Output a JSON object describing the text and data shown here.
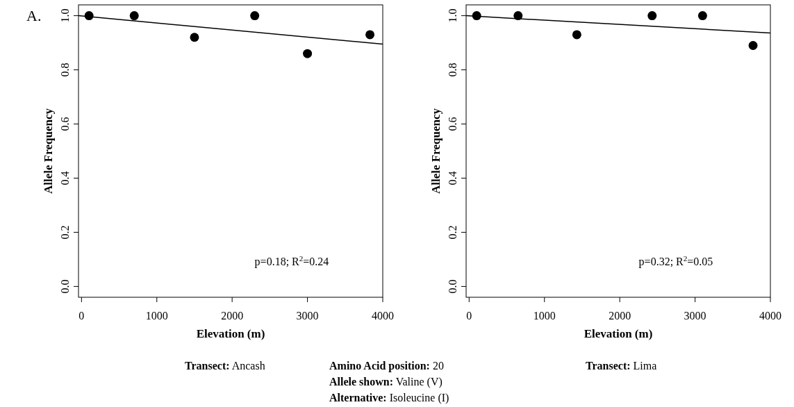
{
  "chart_data": [
    {
      "type": "scatter",
      "xlabel": "Elevation (m)",
      "ylabel": "Allele Frequency",
      "xlim": [
        -40,
        4000
      ],
      "ylim": [
        -0.04,
        1.04
      ],
      "xticks": [
        0,
        1000,
        2000,
        3000,
        4000
      ],
      "yticks": [
        {
          "value": 0,
          "label": "0.0"
        },
        {
          "value": 0.2,
          "label": "0.2"
        },
        {
          "value": 0.4,
          "label": "0.4"
        },
        {
          "value": 0.6,
          "label": "0.6"
        },
        {
          "value": 0.8,
          "label": "0.8"
        },
        {
          "value": 1,
          "label": "1.0"
        }
      ],
      "grid": false,
      "series": [
        {
          "color": "#000000",
          "marker": "circle",
          "x": [
            100,
            700,
            1500,
            2300,
            3000,
            3830
          ],
          "values": [
            1.0,
            1.0,
            0.92,
            1.0,
            0.86,
            0.93
          ]
        },
        {
          "type": "line",
          "color": "#000000",
          "line_style": "solid",
          "x": [
            -40,
            4000
          ],
          "values": [
            1.0,
            0.895
          ]
        }
      ],
      "annotations": [
        "A.",
        "p=0.18; R$^{2}$=0.24",
        "Transect: Ancash",
        "Amino Acid position: 20",
        "Allele shown: Valine (V)",
        "Alternative: Isoleucine (I)"
      ]
    },
    {
      "type": "scatter",
      "xlabel": "Elevation (m)",
      "ylabel": "Allele Frequency",
      "xlim": [
        -40,
        4000
      ],
      "ylim": [
        -0.04,
        1.04
      ],
      "xticks": [
        0,
        1000,
        2000,
        3000,
        4000
      ],
      "yticks": [
        {
          "value": 0,
          "label": "0.0"
        },
        {
          "value": 0.2,
          "label": "0.2"
        },
        {
          "value": 0.4,
          "label": "0.4"
        },
        {
          "value": 0.6,
          "label": "0.6"
        },
        {
          "value": 0.8,
          "label": "0.8"
        },
        {
          "value": 1,
          "label": "1.0"
        }
      ],
      "grid": false,
      "series": [
        {
          "color": "#000000",
          "marker": "circle",
          "x": [
            100,
            650,
            1430,
            2430,
            3100,
            3770
          ],
          "values": [
            1.0,
            1.0,
            0.93,
            1.0,
            1.0,
            0.89
          ]
        },
        {
          "type": "line",
          "color": "#000000",
          "line_style": "solid",
          "x": [
            -40,
            4000
          ],
          "values": [
            1.0,
            0.936
          ]
        }
      ],
      "annotations": [
        "p=0.32; R$^{2}$=0.05",
        "Transect: Lima"
      ]
    }
  ]
}
